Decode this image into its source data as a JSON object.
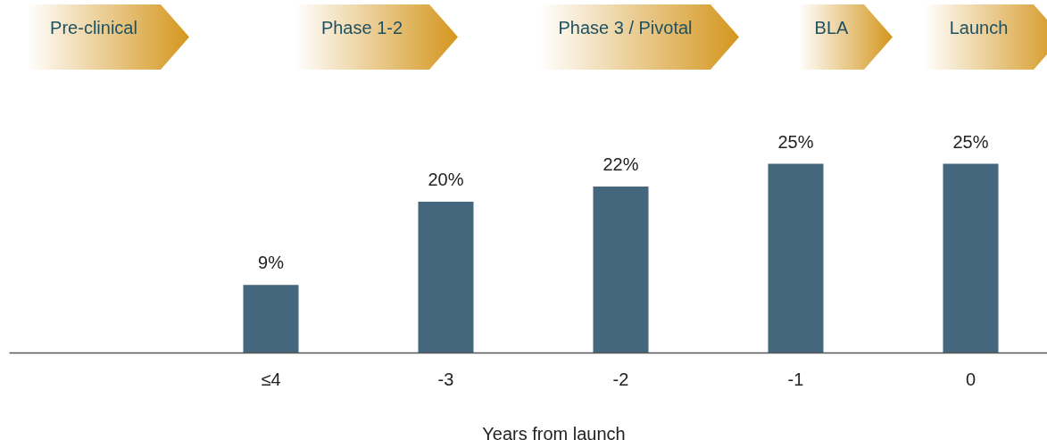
{
  "chart_data": {
    "type": "bar",
    "xlabel": "Years from launch",
    "categories": [
      "≤4",
      "-3",
      "-2",
      "-1",
      "0"
    ],
    "values": [
      9,
      20,
      22,
      25,
      25
    ],
    "value_labels": [
      "9%",
      "20%",
      "22%",
      "25%",
      "25%"
    ],
    "color": "#44677e",
    "annotations": [
      "Pre-clinical",
      "Phase 1-2",
      "Phase 3 / Pivotal",
      "BLA",
      "Launch"
    ]
  }
}
